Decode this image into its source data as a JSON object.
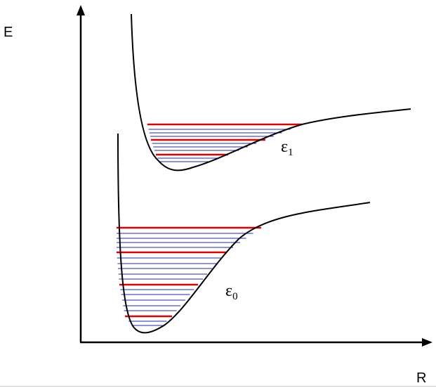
{
  "axis_labels": {
    "y": "E",
    "x": "R"
  },
  "curves": [
    {
      "symbol": "ε",
      "subscript": "1"
    },
    {
      "symbol": "ε",
      "subscript": "0"
    }
  ]
}
